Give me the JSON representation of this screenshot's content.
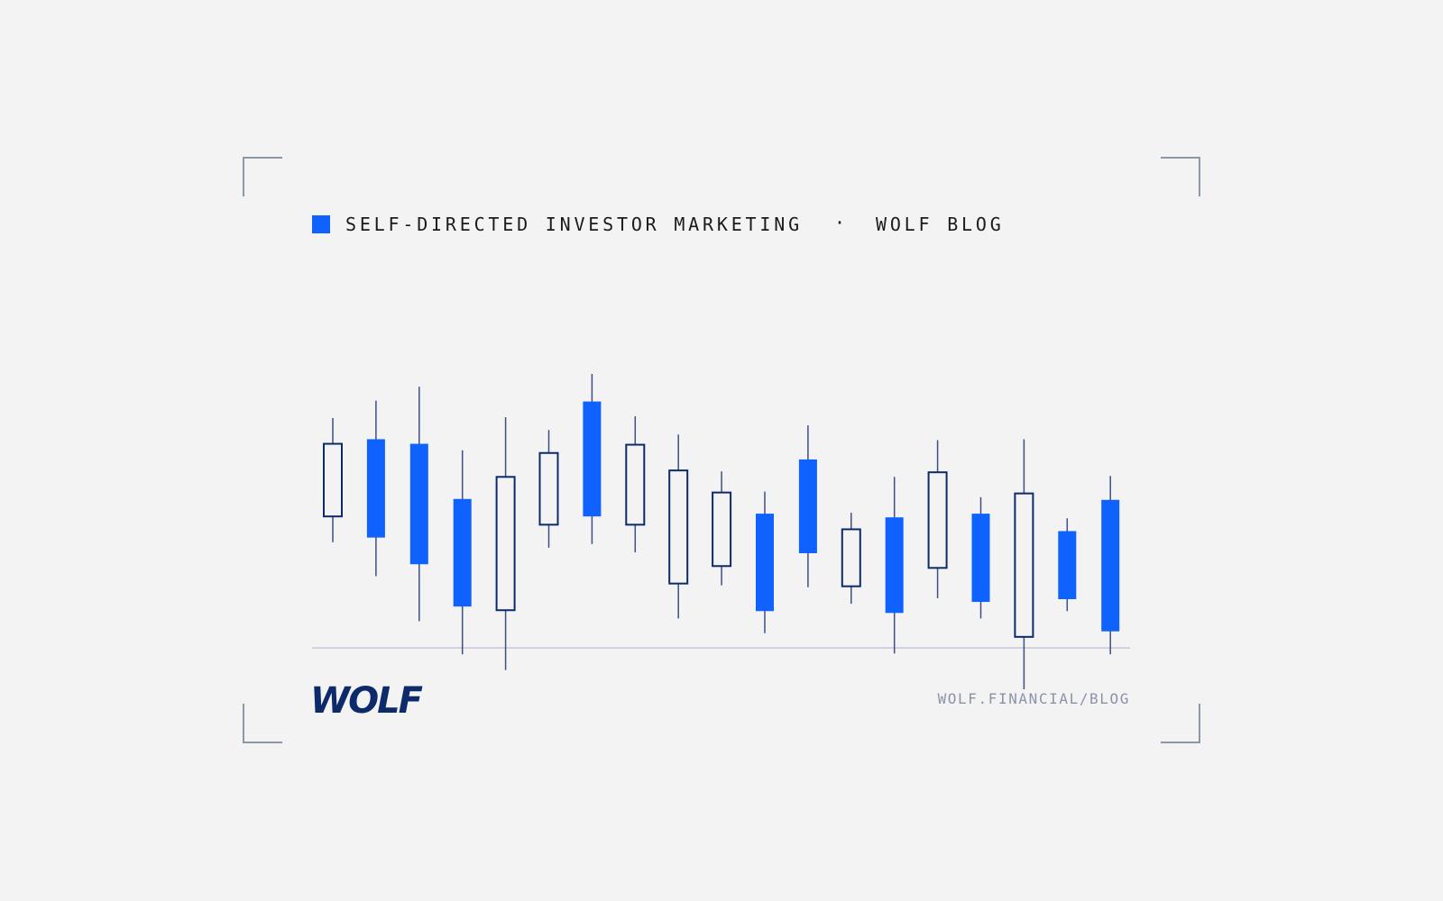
{
  "header": {
    "title": "SELF-DIRECTED INVESTOR MARKETING",
    "separator": "·",
    "section": "WOLF BLOG"
  },
  "footer": {
    "logo": "WOLF",
    "url": "WOLF.FINANCIAL/BLOG"
  },
  "chart_data": {
    "type": "candlestick",
    "up_color": "#0d2a6b",
    "down_color": "#0f62fe",
    "ylim": [
      -45,
      298
    ],
    "open": [
      143,
      227,
      222,
      162,
      41,
      134,
      268,
      134,
      70,
      89,
      146,
      205,
      67,
      142,
      87,
      146,
      12,
      127,
      161
    ],
    "high": [
      250,
      269,
      284,
      215,
      251,
      237,
      298,
      252,
      232,
      192,
      170,
      242,
      147,
      186,
      226,
      164,
      227,
      141,
      187
    ],
    "low": [
      115,
      78,
      29,
      -7,
      -24,
      109,
      113,
      104,
      32,
      68,
      16,
      66,
      48,
      -6,
      54,
      32,
      -45,
      40,
      -7
    ],
    "close": [
      222,
      120,
      91,
      45,
      186,
      212,
      143,
      221,
      193,
      169,
      40,
      103,
      129,
      38,
      191,
      50,
      168,
      53,
      18
    ]
  }
}
